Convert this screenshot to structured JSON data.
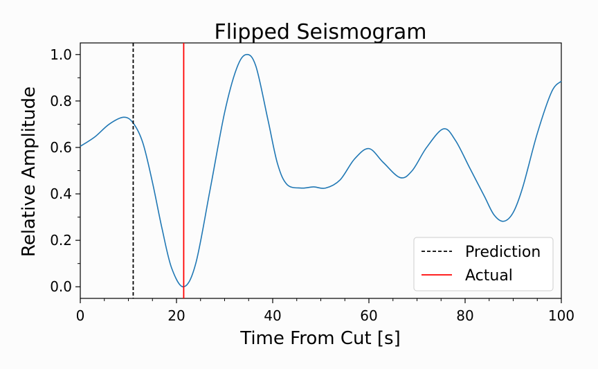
{
  "chart_data": {
    "type": "line",
    "title": "Flipped Seismogram",
    "xlabel": "Time From Cut [s]",
    "ylabel": "Relative Amplitude",
    "xlim": [
      0,
      100
    ],
    "ylim": [
      -0.05,
      1.05
    ],
    "xticks": [
      0,
      20,
      40,
      60,
      80,
      100
    ],
    "xtick_labels": [
      "0",
      "20",
      "40",
      "60",
      "80",
      "100"
    ],
    "yticks": [
      0.0,
      0.2,
      0.4,
      0.6,
      0.8,
      1.0
    ],
    "ytick_labels": [
      "0.0",
      "0.2",
      "0.4",
      "0.6",
      "0.8",
      "1.0"
    ],
    "legend_position": "bottom-right",
    "grid": false,
    "series": [
      {
        "color": "#1f77b4",
        "x": [
          0,
          3,
          6,
          9,
          11,
          13,
          15,
          17,
          19,
          21.5,
          24,
          27,
          30,
          32.5,
          34.5,
          36.5,
          39,
          41,
          43,
          46,
          48.5,
          51,
          54,
          57,
          60,
          63,
          66.5,
          69,
          72,
          75.5,
          78,
          81,
          84,
          86,
          88,
          90,
          92,
          95,
          98,
          100
        ],
        "y": [
          0.605,
          0.645,
          0.7,
          0.73,
          0.705,
          0.62,
          0.45,
          0.25,
          0.08,
          0.0,
          0.1,
          0.42,
          0.75,
          0.94,
          1.0,
          0.95,
          0.72,
          0.53,
          0.44,
          0.425,
          0.43,
          0.425,
          0.46,
          0.55,
          0.595,
          0.535,
          0.47,
          0.5,
          0.6,
          0.68,
          0.63,
          0.51,
          0.39,
          0.31,
          0.282,
          0.32,
          0.43,
          0.66,
          0.84,
          0.885
        ]
      }
    ],
    "vlines": [
      {
        "name": "Prediction",
        "x": 11,
        "color": "#000000",
        "style": "dashed"
      },
      {
        "name": "Actual",
        "x": 21.5,
        "color": "#ff0000",
        "style": "solid"
      }
    ]
  }
}
